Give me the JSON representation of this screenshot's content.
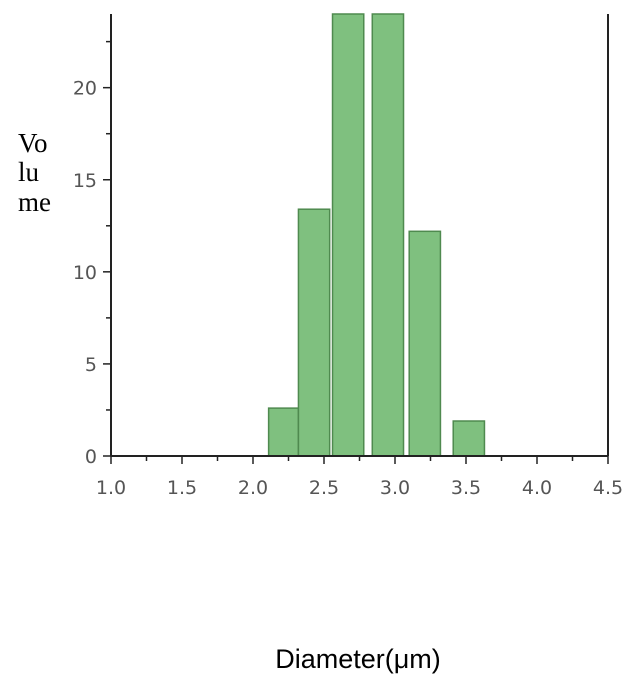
{
  "chart_data": {
    "type": "bar",
    "xlabel": "Diameter(μm)",
    "ylabel_lines": [
      "Vo",
      "lu",
      "me"
    ],
    "xlim": [
      1.0,
      4.5
    ],
    "ylim": [
      0,
      24
    ],
    "x_ticks": [
      "1.0",
      "1.5",
      "2.0",
      "2.5",
      "3.0",
      "3.5",
      "4.0",
      "4.5"
    ],
    "y_ticks": [
      "0",
      "5",
      "10",
      "15",
      "20"
    ],
    "bars": [
      {
        "x_start": 2.11,
        "x_end": 2.32,
        "value": 2.6
      },
      {
        "x_start": 2.32,
        "x_end": 2.54,
        "value": 13.4
      },
      {
        "x_start": 2.56,
        "x_end": 2.78,
        "value": 24
      },
      {
        "x_start": 2.84,
        "x_end": 3.06,
        "value": 24
      },
      {
        "x_start": 3.1,
        "x_end": 3.32,
        "value": 12.2
      },
      {
        "x_start": 3.41,
        "x_end": 3.63,
        "value": 1.9
      }
    ],
    "bar_color": "#7fc07f",
    "bar_edge_color": "#4f8a4f",
    "grid": false,
    "legend": "none"
  }
}
